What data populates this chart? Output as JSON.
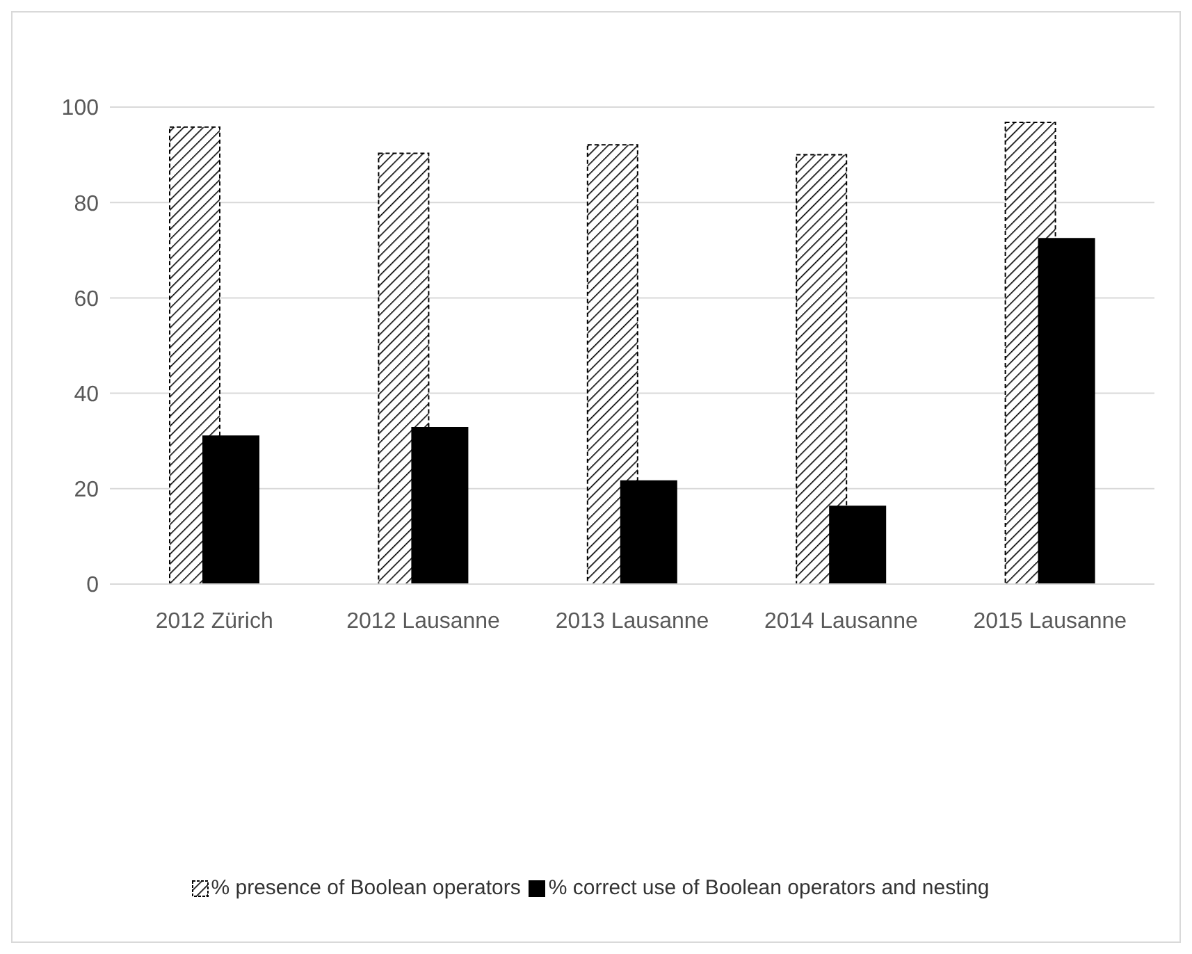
{
  "chart_data": {
    "type": "bar",
    "categories": [
      "2012 Zürich",
      "2012 Lausanne",
      "2013 Lausanne",
      "2014 Lausanne",
      "2015 Lausanne"
    ],
    "series": [
      {
        "name": "% presence of Boolean operators",
        "color": "#000000",
        "values": [
          95.8,
          90.3,
          92.1,
          90.0,
          96.8
        ]
      },
      {
        "name": "% correct use of Boolean operators and nesting",
        "color": "#000000",
        "values": [
          31.0,
          32.8,
          21.6,
          16.3,
          72.4
        ]
      }
    ],
    "ylim": [
      0,
      100
    ],
    "yticks": [
      0,
      20,
      40,
      60,
      80,
      100
    ],
    "grid": "y",
    "legend": "bottom"
  }
}
